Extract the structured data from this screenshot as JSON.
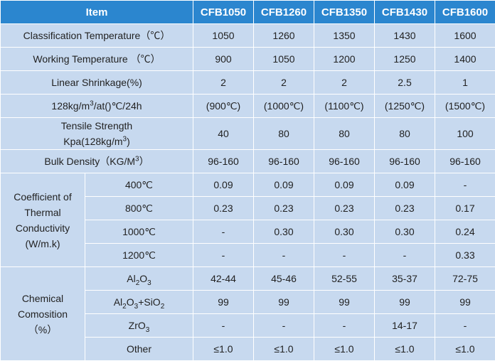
{
  "header": {
    "item": "Item",
    "models": [
      "CFB1050",
      "CFB1260",
      "CFB1350",
      "CFB1430",
      "CFB1600"
    ]
  },
  "classification": {
    "label": "Classification Temperature（℃）",
    "values": [
      "1050",
      "1260",
      "1350",
      "1430",
      "1600"
    ]
  },
  "working": {
    "label": "Working Temperature （℃）",
    "values": [
      "900",
      "1050",
      "1200",
      "1250",
      "1400"
    ]
  },
  "shrinkage": {
    "label": "Linear Shrinkage(%)",
    "cond_pre": "128kg/m",
    "cond_sup": "3",
    "cond_post": "/at()℃/24h",
    "values": [
      "2",
      "2",
      "2",
      "2.5",
      "1"
    ],
    "temps": [
      "(900℃)",
      "(1000℃)",
      "(1100℃)",
      "(1250℃)",
      "(1500℃)"
    ]
  },
  "tensile": {
    "label_line1": "Tensile Strength",
    "label_pre": "Kpa(128kg/m",
    "label_sup": "3",
    "label_post": ")",
    "values": [
      "40",
      "80",
      "80",
      "80",
      "100"
    ]
  },
  "bulk": {
    "label_pre": "Bulk Density（KG/M",
    "label_sup": "3",
    "label_post": "）",
    "values": [
      "96-160",
      "96-160",
      "96-160",
      "96-160",
      "96-160"
    ]
  },
  "thermal": {
    "label": "Coefficient of Thermal Conductivity (W/m.k)",
    "rows": [
      {
        "temp": "400℃",
        "values": [
          "0.09",
          "0.09",
          "0.09",
          "0.09",
          "-"
        ]
      },
      {
        "temp": "800℃",
        "values": [
          "0.23",
          "0.23",
          "0.23",
          "0.23",
          "0.17"
        ]
      },
      {
        "temp": "1000℃",
        "values": [
          "-",
          "0.30",
          "0.30",
          "0.30",
          "0.24"
        ]
      },
      {
        "temp": "1200℃",
        "values": [
          "-",
          "-",
          "-",
          "-",
          "0.33"
        ]
      }
    ]
  },
  "chemical": {
    "label": "Chemical Comosition （%）",
    "rows": [
      {
        "name_parts": [
          "Al",
          "2",
          "O",
          "3",
          ""
        ],
        "values": [
          "42-44",
          "45-46",
          "52-55",
          "35-37",
          "72-75"
        ]
      },
      {
        "name_parts": [
          "Al",
          "2",
          "O",
          "3",
          "+SiO",
          "2"
        ],
        "values": [
          "99",
          "99",
          "99",
          "99",
          "99"
        ]
      },
      {
        "name_parts": [
          "ZrO",
          "3"
        ],
        "values": [
          "-",
          "-",
          "-",
          "14-17",
          "-"
        ]
      },
      {
        "name_parts": [
          "Other"
        ],
        "values": [
          "≤1.0",
          "≤1.0",
          "≤1.0",
          "≤1.0",
          "≤1.0"
        ]
      }
    ]
  },
  "colors": {
    "header_bg": "#2b86cf",
    "cell_bg": "#c7d9ef",
    "grid": "#ffffff"
  }
}
